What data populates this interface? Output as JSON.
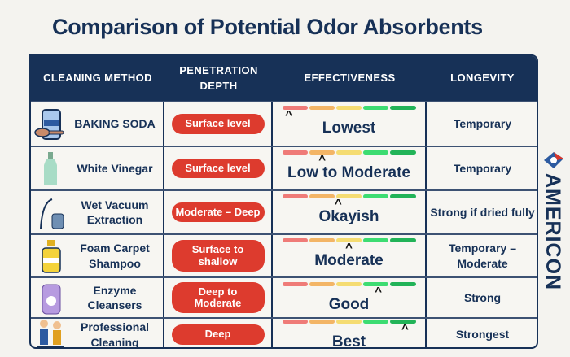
{
  "title": "Comparison of Potential Odor Absorbents",
  "headers": [
    "CLEANING METHOD",
    "PENETRATION DEPTH",
    "EFFECTIVENESS",
    "LONGEVITY"
  ],
  "scale_colors": [
    "#ef7b78",
    "#f3b566",
    "#f5dc72",
    "#3ddc72",
    "#22b358"
  ],
  "rows": [
    {
      "method": "BAKING SODA",
      "icon_label": "SODA",
      "depth": "Surface level",
      "effectiveness": "Lowest",
      "effectiveness_level": 0.05,
      "longevity": "Temporary"
    },
    {
      "method": "White Vinegar",
      "depth": "Surface level",
      "effectiveness": "Low to Moderate",
      "effectiveness_level": 0.3,
      "longevity": "Temporary"
    },
    {
      "method": "Wet Vacuum Extraction",
      "depth": "Moderate – Deep",
      "effectiveness": "Okayish",
      "effectiveness_level": 0.42,
      "longevity": "Strong if dried fully"
    },
    {
      "method": "Foam Carpet Shampoo",
      "icon_label": "SHAMPOO",
      "depth": "Surface to shallow",
      "effectiveness": "Moderate",
      "effectiveness_level": 0.5,
      "longevity": "Temporary – Moderate"
    },
    {
      "method": "Enzyme Cleansers",
      "depth": "Deep to Moderate",
      "effectiveness": "Good",
      "effectiveness_level": 0.72,
      "longevity": "Strong"
    },
    {
      "method": "Professional Cleaning",
      "depth": "Deep",
      "effectiveness": "Best",
      "effectiveness_level": 0.92,
      "longevity": "Strongest"
    }
  ],
  "brand": "AMERICON"
}
